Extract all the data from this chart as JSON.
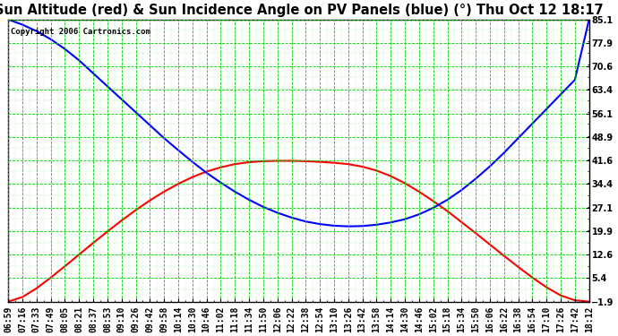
{
  "title": "Sun Altitude (red) & Sun Incidence Angle on PV Panels (blue) (°) Thu Oct 12 18:17",
  "copyright": "Copyright 2006 Cartronics.com",
  "yticks": [
    -1.9,
    5.4,
    12.6,
    19.9,
    27.1,
    34.4,
    41.6,
    48.9,
    56.1,
    63.4,
    70.6,
    77.9,
    85.1
  ],
  "ylim": [
    -1.9,
    85.1
  ],
  "xtick_labels": [
    "06:59",
    "07:16",
    "07:33",
    "07:49",
    "08:05",
    "08:21",
    "08:37",
    "08:53",
    "09:10",
    "09:26",
    "09:42",
    "09:58",
    "10:14",
    "10:30",
    "10:46",
    "11:02",
    "11:18",
    "11:34",
    "11:50",
    "12:06",
    "12:22",
    "12:38",
    "12:54",
    "13:10",
    "13:26",
    "13:42",
    "13:58",
    "14:14",
    "14:30",
    "14:46",
    "15:02",
    "15:18",
    "15:34",
    "15:50",
    "16:06",
    "16:22",
    "16:38",
    "16:54",
    "17:10",
    "17:26",
    "17:42",
    "18:12"
  ],
  "sun_altitude": [
    -1.9,
    -0.5,
    2.2,
    5.5,
    9.0,
    12.6,
    16.2,
    19.7,
    23.1,
    26.3,
    29.3,
    32.0,
    34.4,
    36.5,
    38.2,
    39.5,
    40.5,
    41.1,
    41.4,
    41.5,
    41.5,
    41.4,
    41.2,
    40.9,
    40.5,
    39.7,
    38.5,
    36.8,
    34.6,
    32.0,
    29.1,
    26.0,
    22.6,
    19.2,
    15.7,
    12.2,
    8.8,
    5.5,
    2.5,
    0.0,
    -1.5,
    -1.9
  ],
  "sun_incidence": [
    85.1,
    83.5,
    81.5,
    79.0,
    76.0,
    72.5,
    68.5,
    64.5,
    60.5,
    56.5,
    52.5,
    48.5,
    44.8,
    41.2,
    37.8,
    34.8,
    32.0,
    29.5,
    27.3,
    25.5,
    24.0,
    22.8,
    22.0,
    21.5,
    21.3,
    21.4,
    21.8,
    22.5,
    23.5,
    25.0,
    27.0,
    29.5,
    32.5,
    36.0,
    39.8,
    44.0,
    48.5,
    53.0,
    57.5,
    62.0,
    66.5,
    85.1
  ],
  "line_color_red": "#ff0000",
  "line_color_blue": "#0000ff",
  "grid_color": "#00cc00",
  "bg_color": "#ffffff",
  "plot_bg_color": "#ffffff",
  "border_color": "#000000",
  "title_fontsize": 10.5,
  "tick_fontsize": 7,
  "copyright_fontsize": 6.5
}
